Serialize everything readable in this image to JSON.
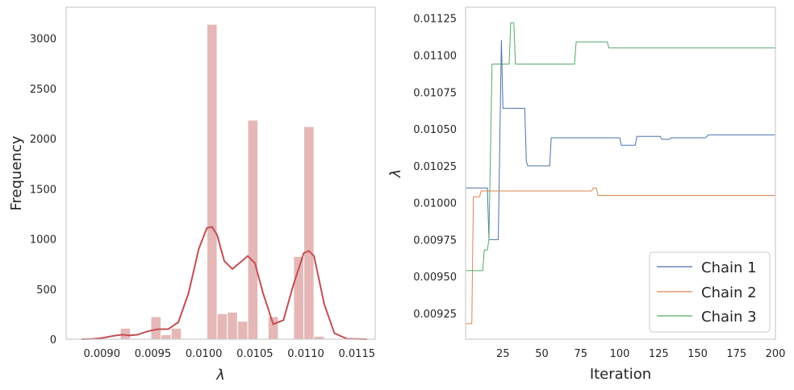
{
  "chart_data": [
    {
      "type": "bar",
      "subtype": "histogram_with_kde",
      "xlabel": "λ",
      "ylabel": "Frequency",
      "xlim": [
        0.00865,
        0.01168
      ],
      "ylim": [
        0,
        3310
      ],
      "xticks": [
        0.009,
        0.0095,
        0.01,
        0.0105,
        0.011,
        0.0115
      ],
      "xtick_labels": [
        "0.0090",
        "0.0095",
        "0.0100",
        "0.0105",
        "0.0110",
        "0.0115"
      ],
      "yticks": [
        0,
        500,
        1000,
        1500,
        2000,
        2500,
        3000
      ],
      "ytick_labels": [
        "0",
        "500",
        "1000",
        "1500",
        "2000",
        "2500",
        "3000"
      ],
      "grid": false,
      "bar_color": "#e5b8b7",
      "line_color": "#c44e52",
      "bin_width": 0.0001,
      "bins": [
        {
          "x0": 0.00918,
          "value": 110
        },
        {
          "x0": 0.00928,
          "value": 5
        },
        {
          "x0": 0.00938,
          "value": 5
        },
        {
          "x0": 0.00948,
          "value": 225
        },
        {
          "x0": 0.00958,
          "value": 45
        },
        {
          "x0": 0.00968,
          "value": 110
        },
        {
          "x0": 0.01003,
          "value": 3140
        },
        {
          "x0": 0.01013,
          "value": 255
        },
        {
          "x0": 0.01023,
          "value": 270
        },
        {
          "x0": 0.01033,
          "value": 180
        },
        {
          "x0": 0.01043,
          "value": 2185
        },
        {
          "x0": 0.01063,
          "value": 225
        },
        {
          "x0": 0.01088,
          "value": 825
        },
        {
          "x0": 0.01098,
          "value": 2120
        },
        {
          "x0": 0.01108,
          "value": 30
        }
      ],
      "kde": {
        "x": [
          0.0088,
          0.0089,
          0.009,
          0.00912,
          0.0092,
          0.00928,
          0.00935,
          0.00945,
          0.00955,
          0.00965,
          0.00975,
          0.00985,
          0.00995,
          0.01003,
          0.01008,
          0.01013,
          0.0102,
          0.01028,
          0.01035,
          0.01043,
          0.0105,
          0.01058,
          0.01068,
          0.01078,
          0.01088,
          0.01098,
          0.01103,
          0.01108,
          0.01118,
          0.01128,
          0.0114,
          0.0116
        ],
        "y": [
          0,
          3,
          12,
          35,
          45,
          38,
          45,
          80,
          100,
          100,
          170,
          460,
          900,
          1110,
          1120,
          1040,
          780,
          700,
          760,
          830,
          760,
          460,
          150,
          190,
          550,
          860,
          880,
          830,
          350,
          60,
          5,
          0
        ]
      }
    },
    {
      "type": "line",
      "xlabel": "Iteration",
      "ylabel": "λ",
      "xlim": [
        1,
        200
      ],
      "ylim": [
        0.009075,
        0.011325
      ],
      "xticks": [
        25,
        50,
        75,
        100,
        125,
        150,
        175,
        200
      ],
      "xtick_labels": [
        "25",
        "50",
        "75",
        "100",
        "125",
        "150",
        "175",
        "200"
      ],
      "yticks": [
        0.00925,
        0.0095,
        0.00975,
        0.01,
        0.01025,
        0.0105,
        0.01075,
        0.011,
        0.01125
      ],
      "ytick_labels": [
        "0.00925",
        "0.00950",
        "0.00975",
        "0.01000",
        "0.01025",
        "0.01050",
        "0.01075",
        "0.01100",
        "0.01125"
      ],
      "grid": false,
      "legend_position": "bottom-right",
      "series": [
        {
          "name": "Chain 1",
          "color": "#4c72b0",
          "points": [
            [
              1,
              0.0101
            ],
            [
              15,
              0.0101
            ],
            [
              16,
              0.00975
            ],
            [
              22,
              0.00975
            ],
            [
              24,
              0.0111
            ],
            [
              25,
              0.01064
            ],
            [
              39,
              0.01064
            ],
            [
              40,
              0.01028
            ],
            [
              41,
              0.01025
            ],
            [
              55,
              0.01025
            ],
            [
              56,
              0.01044
            ],
            [
              100,
              0.01044
            ],
            [
              101,
              0.01039
            ],
            [
              110,
              0.01039
            ],
            [
              111,
              0.01045
            ],
            [
              126,
              0.01045
            ],
            [
              127,
              0.01043
            ],
            [
              132,
              0.01043
            ],
            [
              133,
              0.01044
            ],
            [
              155,
              0.01044
            ],
            [
              157,
              0.01046
            ],
            [
              200,
              0.01046
            ]
          ]
        },
        {
          "name": "Chain 2",
          "color": "#dd8452",
          "points": [
            [
              1,
              0.00918
            ],
            [
              5,
              0.00918
            ],
            [
              6,
              0.01004
            ],
            [
              10,
              0.01004
            ],
            [
              11,
              0.01008
            ],
            [
              14,
              0.01008
            ],
            [
              15,
              0.01008
            ],
            [
              82,
              0.01008
            ],
            [
              83,
              0.0101
            ],
            [
              85,
              0.0101
            ],
            [
              86,
              0.01005
            ],
            [
              200,
              0.01005
            ]
          ]
        },
        {
          "name": "Chain 3",
          "color": "#55a868",
          "points": [
            [
              1,
              0.00954
            ],
            [
              12,
              0.00954
            ],
            [
              13,
              0.00968
            ],
            [
              15,
              0.00968
            ],
            [
              16,
              0.00975
            ],
            [
              18,
              0.01094
            ],
            [
              29,
              0.01094
            ],
            [
              30,
              0.01122
            ],
            [
              32,
              0.01122
            ],
            [
              33,
              0.01094
            ],
            [
              71,
              0.01094
            ],
            [
              72,
              0.01109
            ],
            [
              92,
              0.01109
            ],
            [
              93,
              0.01105
            ],
            [
              200,
              0.01105
            ]
          ]
        }
      ]
    }
  ]
}
